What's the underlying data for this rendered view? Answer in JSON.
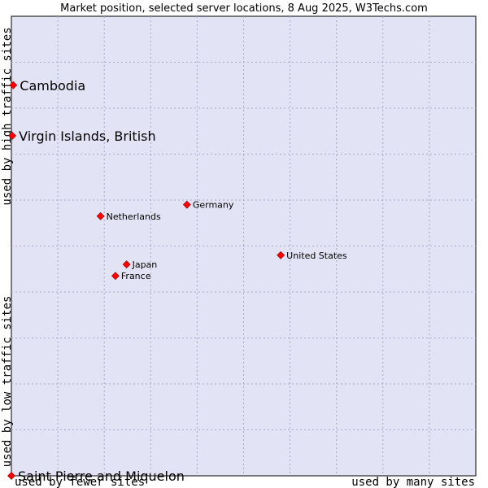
{
  "chart_data": {
    "type": "scatter",
    "title": "Market position, selected server locations, 8 Aug 2025, W3Techs.com",
    "xlabel_low": "used by fewer sites",
    "xlabel_high": "used by many sites",
    "ylabel_low": "used by low traffic sites",
    "ylabel_high": "used by high traffic sites",
    "xlim": [
      0,
      100
    ],
    "ylim": [
      0,
      100
    ],
    "grid": true,
    "points": [
      {
        "name": "Cambodia",
        "x": 0.4,
        "y": 85.0,
        "emphasis": "large"
      },
      {
        "name": "Virgin Islands, British",
        "x": 0.2,
        "y": 74.0,
        "emphasis": "large"
      },
      {
        "name": "Saint Pierre and Miquelon",
        "x": 0.0,
        "y": 0.0,
        "emphasis": "large"
      },
      {
        "name": "Germany",
        "x": 37.8,
        "y": 59.0,
        "emphasis": "small"
      },
      {
        "name": "Netherlands",
        "x": 19.2,
        "y": 56.5,
        "emphasis": "small"
      },
      {
        "name": "United States",
        "x": 58.0,
        "y": 48.0,
        "emphasis": "small"
      },
      {
        "name": "Japan",
        "x": 24.8,
        "y": 46.0,
        "emphasis": "small"
      },
      {
        "name": "France",
        "x": 22.4,
        "y": 43.5,
        "emphasis": "small"
      }
    ]
  },
  "colors": {
    "plot_background": "#e3e3f6",
    "grid": "#a8a8c8",
    "marker": "#ff0000",
    "marker_border": "#990000"
  }
}
